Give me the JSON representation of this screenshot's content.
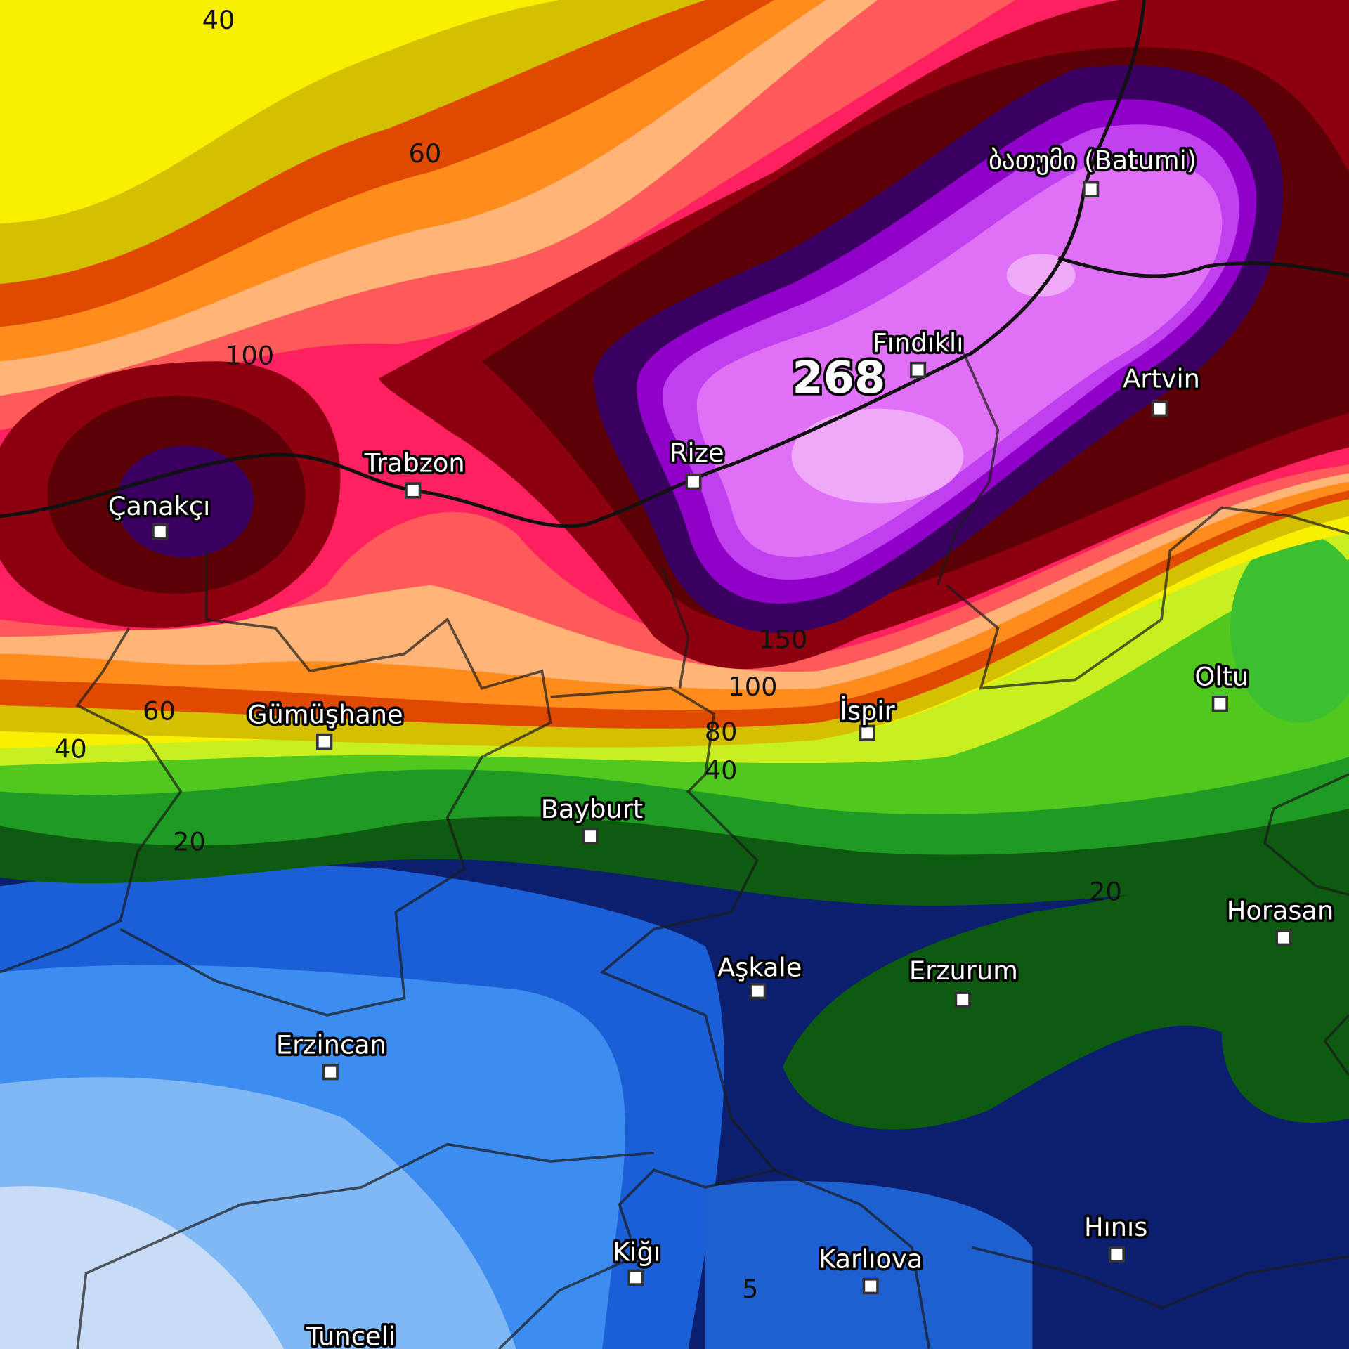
{
  "places": [
    "ბათუმი (Batumi)",
    "Fındıklı",
    "Artvin",
    "Rize",
    "Trabzon",
    "Çanakçı",
    "Gümüşhane",
    "İspir",
    "Oltu",
    "Bayburt",
    "Aşkale",
    "Erzurum",
    "Horasan",
    "Erzincan",
    "Hınıs",
    "Kiğı",
    "Karlıova",
    "Tunceli"
  ],
  "max_label": 268,
  "contour_labels": [
    40,
    60,
    100,
    60,
    40,
    20,
    150,
    100,
    80,
    40,
    20,
    5
  ]
}
